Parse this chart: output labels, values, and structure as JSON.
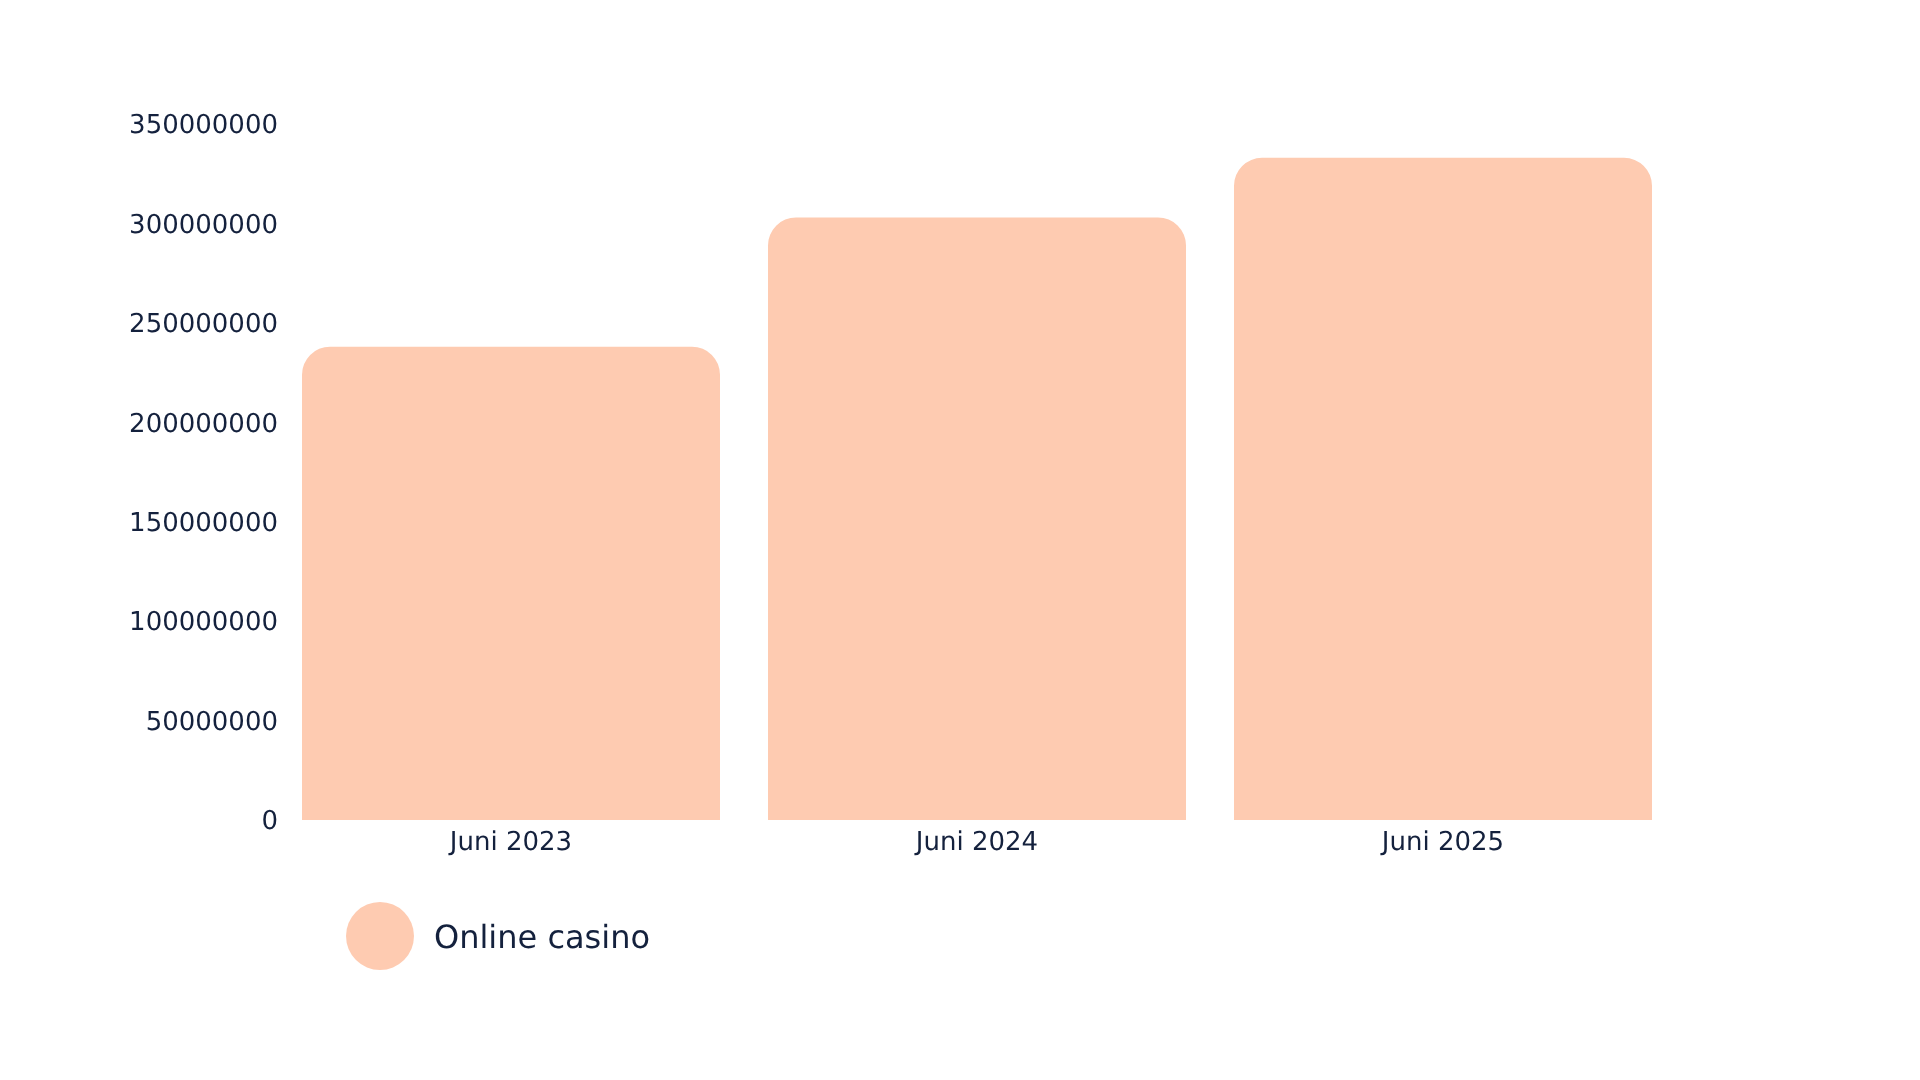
{
  "chart_data": {
    "type": "bar",
    "categories": [
      "Juni 2023",
      "Juni 2024",
      "Juni 2025"
    ],
    "series": [
      {
        "name": "Online casino",
        "color": "#fecbb1",
        "values": [
          238000000,
          303000000,
          333000000
        ]
      }
    ],
    "ylim": [
      0,
      350000000
    ],
    "yticks": [
      0,
      50000000,
      100000000,
      150000000,
      200000000,
      250000000,
      300000000,
      350000000
    ],
    "legend": "bottom left"
  }
}
